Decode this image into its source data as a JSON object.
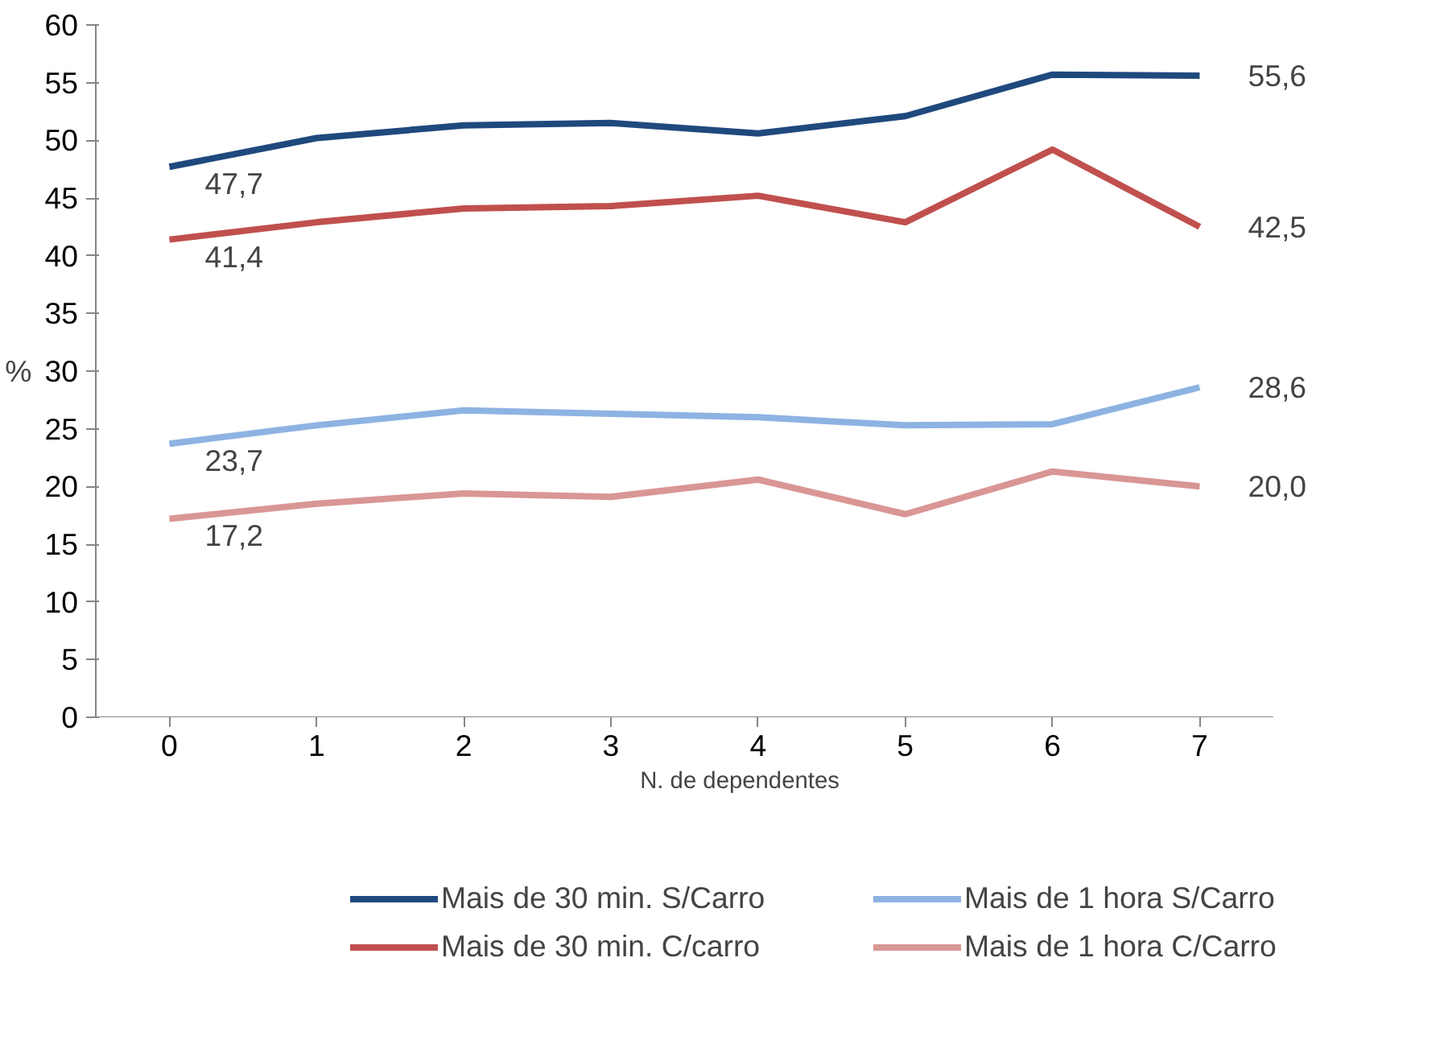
{
  "chart_data": {
    "type": "line",
    "xlabel": "N. de dependentes",
    "ylabel": "%",
    "categories": [
      "0",
      "1",
      "2",
      "3",
      "4",
      "5",
      "6",
      "7"
    ],
    "ylim": [
      0,
      60
    ],
    "yticks": [
      0,
      5,
      10,
      15,
      20,
      25,
      30,
      35,
      40,
      45,
      50,
      55,
      60
    ],
    "grid": false,
    "legend": "bottom",
    "marker": "none",
    "line_style": "solid",
    "series": [
      {
        "name": "Mais de 30 min. S/Carro",
        "color": "#1f497d",
        "values": [
          47.7,
          50.2,
          51.3,
          51.5,
          50.6,
          52.1,
          55.7,
          55.6
        ],
        "value_labels": [
          "47,7",
          null,
          null,
          null,
          null,
          null,
          null,
          "55,6"
        ]
      },
      {
        "name": "Mais de 30 min. C/carro",
        "color": "#c0504d",
        "values": [
          41.4,
          42.9,
          44.1,
          44.3,
          45.2,
          42.9,
          49.2,
          42.5
        ],
        "value_labels": [
          "41,4",
          null,
          null,
          null,
          null,
          null,
          null,
          "42,5"
        ]
      },
      {
        "name": "Mais de 1 hora S/Carro",
        "color": "#8db3e2",
        "values": [
          23.7,
          25.3,
          26.6,
          26.3,
          26.0,
          25.3,
          25.4,
          28.6
        ],
        "value_labels": [
          "23,7",
          null,
          null,
          null,
          null,
          null,
          null,
          "28,6"
        ]
      },
      {
        "name": "Mais de 1 hora C/Carro",
        "color": "#d99694",
        "values": [
          17.2,
          18.5,
          19.4,
          19.1,
          20.6,
          17.6,
          21.3,
          20.0
        ],
        "value_labels": [
          "17,2",
          null,
          null,
          null,
          null,
          null,
          null,
          "20,0"
        ]
      }
    ]
  }
}
